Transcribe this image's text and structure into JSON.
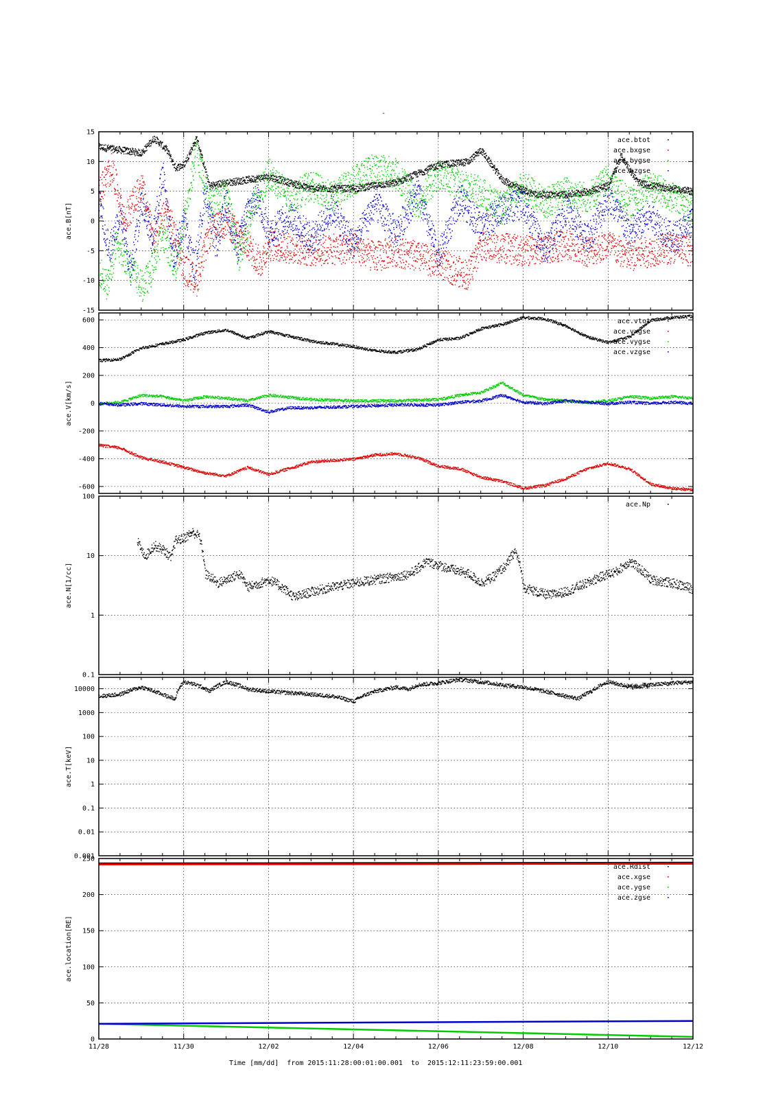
{
  "page_title": "-",
  "colors": {
    "btot": "#000000",
    "bx": "#dd0000",
    "by": "#00cc00",
    "bz": "#0000cc"
  },
  "x_axis": {
    "label": "Time [mm/dd]  from 2015:11:28:00:01:00.001  to  2015:12:11:23:59:00.001",
    "tick_labels": [
      "11/28",
      "11/30",
      "12/02",
      "12/04",
      "12/06",
      "12/08",
      "12/10",
      "12/12"
    ],
    "tick_values_days": [
      0,
      2,
      4,
      6,
      8,
      10,
      12,
      14
    ],
    "range_days": [
      0,
      14
    ]
  },
  "chart_data": [
    {
      "type": "scatter",
      "ylabel": "ace.B[nT]",
      "ylim": [
        -15,
        15
      ],
      "yticks": [
        -15,
        -10,
        -5,
        0,
        5,
        10,
        15
      ],
      "ytick_labels": [
        "-15",
        "-10",
        "-5",
        "0",
        "5",
        "10",
        "15"
      ],
      "legend_position": "top-right",
      "series": [
        {
          "name": "ace.btot",
          "color": "#000000",
          "x": [
            0,
            0.5,
            1,
            1.3,
            1.6,
            1.8,
            2,
            2.3,
            2.6,
            3,
            3.5,
            4,
            5,
            6,
            7,
            7.5,
            8,
            8.7,
            9,
            9.5,
            9.9,
            10.3,
            11,
            11.5,
            12,
            12.3,
            12.7,
            13,
            13.5,
            14
          ],
          "y": [
            12.5,
            12,
            11.5,
            14,
            12,
            9,
            9.5,
            14,
            6,
            6.5,
            7,
            7.5,
            5.5,
            5.5,
            6.5,
            8,
            9.5,
            10,
            12,
            7,
            5.5,
            4.5,
            4.5,
            5,
            6,
            11,
            6.5,
            6,
            5.5,
            5
          ]
        },
        {
          "name": "ace.bxgse",
          "color": "#dd0000",
          "x": [
            0,
            0.3,
            0.6,
            1,
            1.3,
            1.6,
            2,
            2.3,
            2.6,
            3,
            3.5,
            3.8,
            4,
            5,
            6,
            6.5,
            7,
            7.5,
            8,
            8.3,
            8.7,
            9,
            9.5,
            10,
            10.5,
            11,
            11.5,
            12,
            12.5,
            13,
            13.5,
            14
          ],
          "y": [
            5,
            9,
            0,
            6,
            -3,
            2,
            -8,
            -10,
            -2,
            0,
            -4,
            -7,
            -4,
            -5,
            -4.5,
            -6,
            -5,
            -6,
            -7,
            -8,
            -9,
            -4,
            -4.5,
            -5,
            -4.5,
            -4,
            -5,
            -4,
            -6,
            -5,
            -4.5,
            -5
          ]
        },
        {
          "name": "ace.bygse",
          "color": "#00cc00",
          "x": [
            0,
            0.2,
            0.4,
            0.7,
            1,
            1.2,
            1.5,
            1.8,
            2,
            2.3,
            2.6,
            3,
            3.3,
            3.6,
            4,
            4.5,
            5,
            5.5,
            6,
            6.5,
            7,
            7.5,
            8,
            8.5,
            9,
            9.5,
            10,
            10.5,
            11,
            11.5,
            12,
            12.5,
            13,
            13.5,
            14
          ],
          "y": [
            -8,
            -11,
            -4,
            -7,
            -11,
            -9,
            -2,
            -8,
            0,
            12,
            3,
            5,
            -6,
            2,
            8,
            4,
            6,
            4,
            7,
            9,
            8,
            3,
            8,
            6,
            5,
            2,
            6,
            3,
            5,
            4,
            7,
            3,
            6,
            4,
            2
          ]
        },
        {
          "name": "ace.bzgse",
          "color": "#0000cc",
          "x": [
            0,
            0.25,
            0.5,
            0.75,
            1,
            1.25,
            1.5,
            1.75,
            2,
            2.25,
            2.5,
            2.75,
            3,
            3.25,
            3.5,
            3.75,
            4,
            4.5,
            5,
            5.5,
            6,
            6.5,
            7,
            7.5,
            8,
            8.5,
            9,
            9.5,
            10,
            10.5,
            11,
            11.5,
            12,
            12.5,
            13,
            13.5,
            14
          ],
          "y": [
            3,
            -5,
            2,
            -9,
            4,
            -3,
            8,
            -6,
            0,
            -8,
            5,
            -4,
            3,
            -5,
            2,
            4,
            -2,
            1,
            -3,
            2,
            -4,
            3,
            -2,
            5,
            -6,
            4,
            -1,
            2,
            3,
            -5,
            2,
            -3,
            4,
            -2,
            1,
            -3,
            0
          ]
        }
      ]
    },
    {
      "type": "scatter",
      "ylabel": "ace.V[km/s]",
      "ylim": [
        -650,
        650
      ],
      "yticks": [
        -600,
        -400,
        -200,
        0,
        200,
        400,
        600
      ],
      "ytick_labels": [
        "-600",
        "-400",
        "-200",
        "0",
        "200",
        "400",
        "600"
      ],
      "legend_position": "top-right",
      "series": [
        {
          "name": "ace.vtot",
          "color": "#000000",
          "x": [
            0,
            0.5,
            1,
            1.5,
            2,
            2.5,
            3,
            3.5,
            4,
            5,
            6,
            6.5,
            7,
            7.5,
            8,
            8.5,
            9,
            9.5,
            10,
            10.5,
            11,
            11.5,
            12,
            12.5,
            13,
            13.5,
            14
          ],
          "y": [
            310,
            320,
            400,
            430,
            460,
            510,
            530,
            470,
            520,
            450,
            410,
            380,
            370,
            390,
            460,
            470,
            540,
            570,
            620,
            610,
            560,
            480,
            440,
            480,
            600,
            620,
            630
          ]
        },
        {
          "name": "ace.vxgse",
          "color": "#dd0000",
          "x": [
            0,
            0.5,
            1,
            1.5,
            2,
            2.5,
            3,
            3.5,
            4,
            5,
            6,
            6.5,
            7,
            7.5,
            8,
            8.5,
            9,
            9.5,
            10,
            10.5,
            11,
            11.5,
            12,
            12.5,
            13,
            13.5,
            14
          ],
          "y": [
            -300,
            -320,
            -390,
            -420,
            -460,
            -500,
            -520,
            -460,
            -510,
            -420,
            -400,
            -370,
            -360,
            -390,
            -450,
            -470,
            -530,
            -560,
            -610,
            -590,
            -540,
            -470,
            -430,
            -470,
            -580,
            -610,
            -620
          ]
        },
        {
          "name": "ace.vygse",
          "color": "#00cc00",
          "x": [
            0,
            0.5,
            1,
            1.5,
            2,
            2.5,
            3,
            3.5,
            4,
            5,
            6,
            7,
            8,
            8.5,
            9,
            9.5,
            10,
            10.5,
            11,
            11.5,
            12,
            12.5,
            13,
            13.5,
            14
          ],
          "y": [
            0,
            10,
            60,
            50,
            20,
            50,
            40,
            20,
            60,
            30,
            20,
            20,
            30,
            60,
            80,
            150,
            60,
            30,
            20,
            10,
            20,
            50,
            40,
            50,
            40
          ]
        },
        {
          "name": "ace.vzgse",
          "color": "#0000cc",
          "x": [
            0,
            0.5,
            1,
            1.5,
            2,
            2.5,
            3,
            3.5,
            4,
            4.5,
            5,
            6,
            7,
            8,
            8.5,
            9,
            9.5,
            10,
            10.5,
            11,
            11.5,
            12,
            12.5,
            13,
            13.5,
            14
          ],
          "y": [
            0,
            -10,
            0,
            -10,
            -20,
            -20,
            -20,
            -10,
            -60,
            -30,
            -30,
            -20,
            -10,
            -10,
            10,
            20,
            60,
            10,
            0,
            20,
            10,
            0,
            10,
            0,
            10,
            0
          ]
        }
      ]
    },
    {
      "type": "scatter",
      "ylabel": "ace.N[1/cc]",
      "yscale": "log",
      "ylim": [
        0.1,
        100
      ],
      "yticks": [
        0.1,
        1,
        10,
        100
      ],
      "ytick_labels": [
        "0.1",
        "1",
        "10",
        "100"
      ],
      "legend_position": "top-right",
      "series": [
        {
          "name": "ace.Np",
          "color": "#000000",
          "x": [
            0.9,
            1.0,
            1.1,
            1.3,
            1.5,
            1.7,
            1.8,
            2.0,
            2.2,
            2.35,
            2.5,
            2.8,
            3.0,
            3.3,
            3.5,
            3.8,
            4.0,
            4.3,
            4.6,
            5.0,
            5.5,
            6.0,
            6.5,
            7.0,
            7.3,
            7.5,
            7.7,
            8.0,
            8.3,
            8.7,
            9.0,
            9.3,
            9.6,
            9.8,
            10.0,
            10.3,
            10.6,
            11.0,
            11.5,
            12.0,
            12.2,
            12.5,
            13.0,
            13.5,
            14.0
          ],
          "y": [
            18,
            12,
            10,
            15,
            13,
            9,
            18,
            20,
            25,
            22,
            5,
            3.5,
            4,
            5,
            3,
            3.5,
            4,
            3,
            2,
            2.5,
            3,
            3.5,
            4,
            4.5,
            5,
            6,
            8,
            7,
            6,
            5,
            3.5,
            4.5,
            7,
            12,
            3,
            2.5,
            2.2,
            2.5,
            3.5,
            5,
            5.5,
            8,
            4,
            3.5,
            2.8
          ]
        }
      ]
    },
    {
      "type": "scatter",
      "ylabel": "ace.T[keV]",
      "yscale": "log",
      "ylim": [
        0.001,
        30000
      ],
      "yticks": [
        0.001,
        0.01,
        0.1,
        1,
        10,
        100,
        1000,
        10000
      ],
      "ytick_labels": [
        "0.001",
        "0.01",
        "0.1",
        "1",
        "10",
        "100",
        "1000",
        "10000"
      ],
      "legend_position": "top-right",
      "series": [
        {
          "name": "ace.Tp",
          "color": "#000000",
          "x": [
            0,
            0.5,
            1,
            1.3,
            1.6,
            1.8,
            2,
            2.3,
            2.6,
            3,
            3.5,
            4,
            4.5,
            5,
            5.5,
            6,
            6.5,
            7,
            7.3,
            7.5,
            8,
            8.5,
            9,
            9.5,
            10,
            10.5,
            11,
            11.3,
            11.6,
            12,
            12.3,
            12.6,
            13,
            13.5,
            14
          ],
          "y": [
            5000,
            6000,
            12000,
            8000,
            5000,
            4000,
            20000,
            15000,
            8000,
            20000,
            10000,
            8000,
            7000,
            6000,
            5000,
            3000,
            8000,
            12000,
            10000,
            15000,
            18000,
            25000,
            20000,
            15000,
            12000,
            8000,
            5000,
            4000,
            8000,
            20000,
            15000,
            12000,
            15000,
            18000,
            20000
          ]
        }
      ]
    },
    {
      "type": "line",
      "ylabel": "ace.location[RE]",
      "ylim": [
        0,
        250
      ],
      "yticks": [
        0,
        50,
        100,
        150,
        200,
        250
      ],
      "ytick_labels": [
        "0",
        "50",
        "100",
        "150",
        "200",
        "250"
      ],
      "legend_position": "top-right",
      "series": [
        {
          "name": "ace.Rdist",
          "color": "#000000",
          "x": [
            0,
            14
          ],
          "y": [
            243,
            244
          ]
        },
        {
          "name": "ace.xgse",
          "color": "#dd0000",
          "x": [
            0,
            14
          ],
          "y": [
            242,
            243
          ]
        },
        {
          "name": "ace.ygse",
          "color": "#00cc00",
          "x": [
            0,
            14
          ],
          "y": [
            21,
            3
          ]
        },
        {
          "name": "ace.zgse",
          "color": "#0000cc",
          "x": [
            0,
            14
          ],
          "y": [
            21,
            25
          ]
        }
      ]
    }
  ]
}
